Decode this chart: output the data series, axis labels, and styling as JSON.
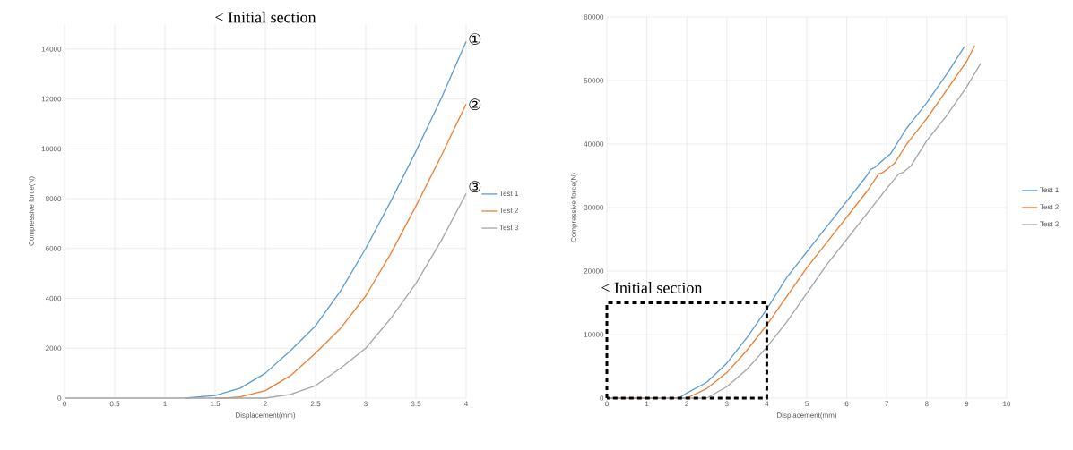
{
  "chart_data": [
    {
      "type": "line",
      "title": "<  Initial  section",
      "xlabel": "Displacement(mm)",
      "ylabel": "Compressive force(N)",
      "xlim": [
        0,
        4
      ],
      "ylim": [
        0,
        15000
      ],
      "xticks": [
        0,
        0.5,
        1,
        1.5,
        2,
        2.5,
        3,
        3.5,
        4
      ],
      "yticks": [
        0,
        2000,
        4000,
        6000,
        8000,
        10000,
        12000,
        14000
      ],
      "grid": true,
      "legend": "right",
      "marker": "none",
      "line_style": "solid",
      "annotations": [
        "①",
        "②",
        "③"
      ],
      "series": [
        {
          "name": "Test 1",
          "color": "#5b9bd5",
          "x": [
            1.2,
            1.5,
            1.75,
            2,
            2.25,
            2.5,
            2.75,
            3,
            3.25,
            3.5,
            3.75,
            4
          ],
          "values": [
            0,
            100,
            400,
            1000,
            1900,
            2900,
            4300,
            6000,
            7900,
            9900,
            12000,
            14300
          ]
        },
        {
          "name": "Test 2",
          "color": "#ed7d31",
          "x": [
            1.5,
            1.6,
            1.75,
            2,
            2.25,
            2.5,
            2.75,
            3,
            3.25,
            3.5,
            3.75,
            4
          ],
          "values": [
            0,
            0,
            50,
            300,
            900,
            1800,
            2800,
            4100,
            5800,
            7700,
            9700,
            11800
          ]
        },
        {
          "name": "Test 3",
          "color": "#a5a5a5",
          "x": [
            0,
            0.5,
            1,
            1.5,
            2,
            2.25,
            2.5,
            2.75,
            3,
            3.25,
            3.5,
            3.75,
            4
          ],
          "values": [
            0,
            0,
            0,
            0,
            0,
            150,
            500,
            1200,
            2000,
            3200,
            4600,
            6300,
            8200
          ]
        }
      ]
    },
    {
      "type": "line",
      "xlabel": "Displacement(mm)",
      "ylabel": "Compressive force(N)",
      "xlim": [
        0,
        10
      ],
      "ylim": [
        0,
        60000
      ],
      "xticks": [
        0,
        1,
        2,
        3,
        4,
        5,
        6,
        7,
        8,
        9,
        10
      ],
      "yticks": [
        0,
        10000,
        20000,
        30000,
        40000,
        50000,
        60000
      ],
      "grid": true,
      "legend": "right",
      "marker": "none",
      "line_style": "solid",
      "annotations": [
        "<  Initial  section"
      ],
      "series": [
        {
          "name": "Test 1",
          "color": "#5b9bd5",
          "x": [
            0,
            1,
            1.8,
            2,
            2.5,
            3,
            3.5,
            4,
            4.5,
            5,
            5.5,
            6,
            6.5,
            6.6,
            6.7,
            7,
            7.1,
            7.5,
            8,
            8.5,
            8.94
          ],
          "values": [
            0,
            0,
            0,
            800,
            2500,
            5500,
            9500,
            14000,
            19000,
            23000,
            27000,
            31000,
            35000,
            36000,
            36300,
            38000,
            38500,
            42500,
            46500,
            51000,
            55300
          ]
        },
        {
          "name": "Test 2",
          "color": "#ed7d31",
          "x": [
            0,
            1,
            2,
            2.5,
            3,
            3.5,
            4,
            4.5,
            5,
            5.5,
            6,
            6.5,
            6.8,
            6.9,
            7,
            7.2,
            7.5,
            8,
            8.5,
            9,
            9.2
          ],
          "values": [
            0,
            0,
            0,
            1500,
            4000,
            7500,
            11500,
            16000,
            20500,
            24500,
            28500,
            32500,
            35300,
            35500,
            36000,
            37000,
            40000,
            44000,
            48500,
            53000,
            55500
          ]
        },
        {
          "name": "Test 3",
          "color": "#a5a5a5",
          "x": [
            0,
            1,
            2,
            2.5,
            3,
            3.5,
            4,
            4.5,
            5,
            5.5,
            6,
            6.5,
            7,
            7.3,
            7.4,
            7.6,
            8,
            8.5,
            9,
            9.35
          ],
          "values": [
            0,
            0,
            0,
            0,
            1800,
            4500,
            8000,
            12000,
            16500,
            21000,
            25000,
            29000,
            33000,
            35300,
            35500,
            36500,
            40500,
            44500,
            49000,
            52700
          ]
        }
      ]
    }
  ]
}
